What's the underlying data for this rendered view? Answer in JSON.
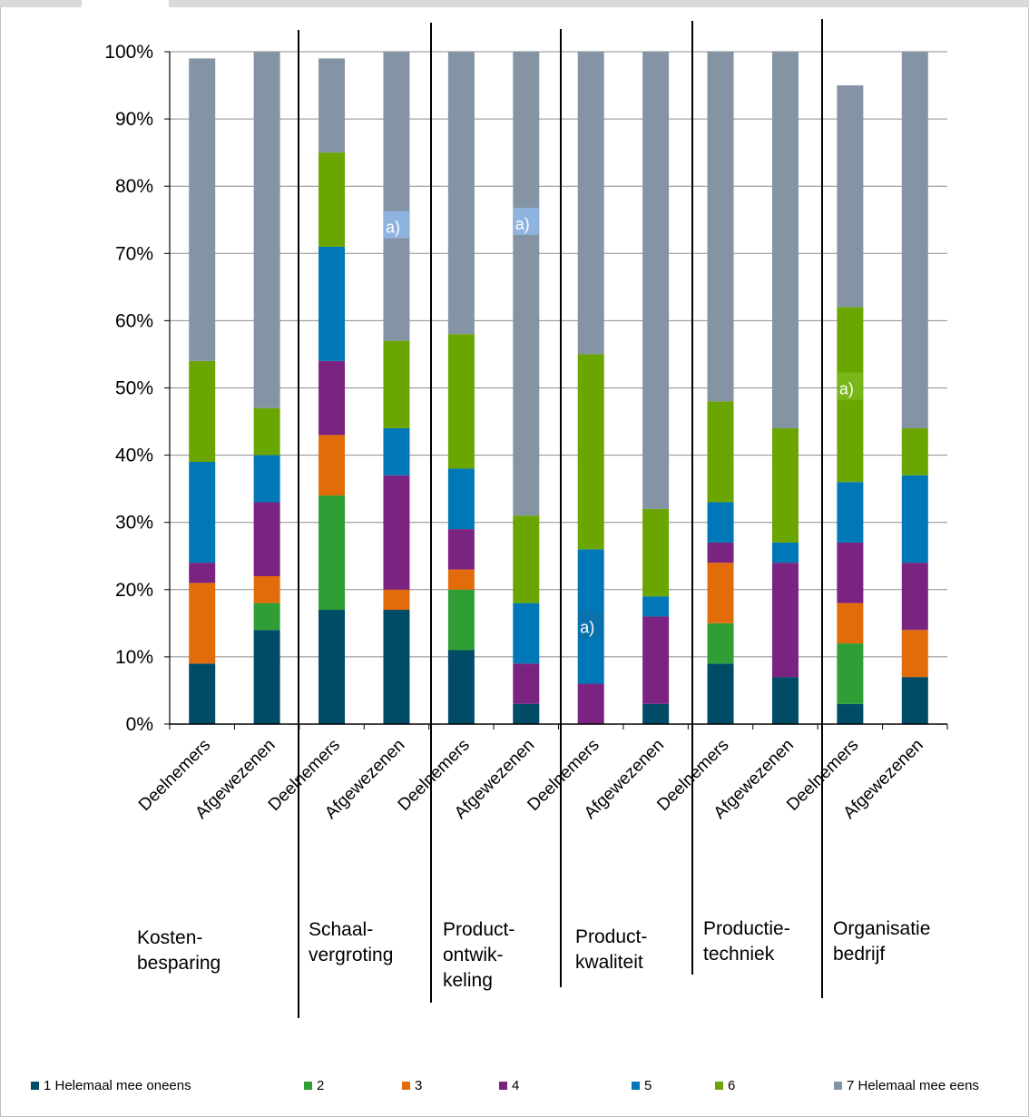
{
  "chart_data": {
    "type": "bar",
    "stacked": true,
    "categories": [
      "Deelnemers",
      "Afgewezenen",
      "Deelnemers",
      "Afgewezenen",
      "Deelnemers",
      "Afgewezenen",
      "Deelnemers",
      "Afgewezenen",
      "Deelnemers",
      "Afgewezenen",
      "Deelnemers",
      "Afgewezenen"
    ],
    "groups": [
      {
        "label": "Kosten-\nbesparing"
      },
      {
        "label": "Schaal-\nvergroting"
      },
      {
        "label": "Product-\nontwik-\nkeling"
      },
      {
        "label": "Product-\nkwaliteit"
      },
      {
        "label": "Productie-\ntechniek"
      },
      {
        "label": "Organisatie\nbedrijf"
      }
    ],
    "series": [
      {
        "name": "1 Helemaal mee oneens",
        "color": "#004b66",
        "values": [
          9,
          14,
          17,
          17,
          11,
          3,
          0,
          3,
          9,
          7,
          3,
          7
        ]
      },
      {
        "name": "2",
        "color": "#2e9e35",
        "values": [
          0,
          4,
          17,
          0,
          9,
          0,
          0,
          0,
          6,
          0,
          9,
          0
        ]
      },
      {
        "name": "3",
        "color": "#e36c0a",
        "values": [
          12,
          4,
          9,
          3,
          3,
          0,
          0,
          0,
          9,
          0,
          6,
          7
        ]
      },
      {
        "name": "4",
        "color": "#7b2381",
        "values": [
          3,
          11,
          11,
          17,
          6,
          6,
          6,
          13,
          3,
          17,
          9,
          10
        ]
      },
      {
        "name": "5",
        "color": "#0077b6",
        "values": [
          15,
          7,
          17,
          7,
          9,
          9,
          20,
          3,
          6,
          3,
          9,
          13
        ]
      },
      {
        "name": "6",
        "color": "#6aa500",
        "values": [
          15,
          7,
          14,
          13,
          20,
          13,
          29,
          13,
          15,
          17,
          26,
          7
        ]
      },
      {
        "name": "7 Helemaal mee eens",
        "color": "#8494a4",
        "values": [
          45,
          53,
          14,
          43,
          42,
          69,
          45,
          68,
          52,
          56,
          33,
          56
        ]
      }
    ],
    "yticks": [
      "0%",
      "10%",
      "20%",
      "30%",
      "40%",
      "50%",
      "60%",
      "70%",
      "80%",
      "90%",
      "100%"
    ],
    "ylim": [
      0,
      100
    ],
    "grid": true,
    "legend": "bottom",
    "annotations": [
      {
        "text": "a)",
        "bar": 3,
        "y": 74,
        "box_color": "#8fb4e3"
      },
      {
        "text": "a)",
        "bar": 5,
        "y": 74.5,
        "box_color": "#8fb4e3"
      },
      {
        "text": "a)",
        "bar": 6,
        "y": 14.5,
        "box_color": "#0a72ad"
      },
      {
        "text": "a)",
        "bar": 10,
        "y": 50,
        "box_color": "#79b61a"
      }
    ]
  }
}
